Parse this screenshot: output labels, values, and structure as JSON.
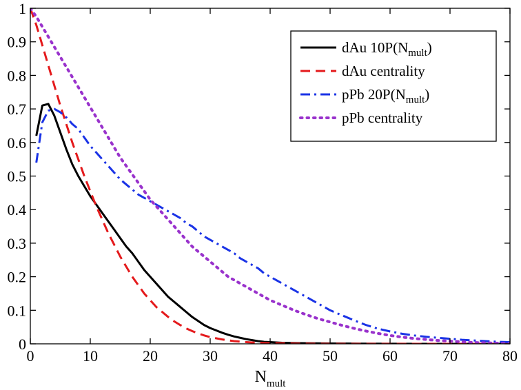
{
  "chart_data": {
    "type": "line",
    "xlabel": {
      "main": "N",
      "sub": "mult"
    },
    "ylabel": "",
    "xlim": [
      0,
      80
    ],
    "ylim": [
      0,
      1
    ],
    "xticks": [
      "0",
      "10",
      "20",
      "30",
      "40",
      "50",
      "60",
      "70",
      "80"
    ],
    "yticks": [
      "0",
      "0.1",
      "0.2",
      "0.3",
      "0.4",
      "0.5",
      "0.6",
      "0.7",
      "0.8",
      "0.9",
      "1"
    ],
    "legend_position": "top-right",
    "grid": false,
    "series": [
      {
        "name": "dAu 10P(Nmult)",
        "legend": {
          "pre": "dAu 10P(N",
          "sub": "mult",
          "post": ")"
        },
        "color": "#000000",
        "style": "solid",
        "points": [
          [
            1,
            0.62
          ],
          [
            2,
            0.71
          ],
          [
            3,
            0.715
          ],
          [
            4,
            0.68
          ],
          [
            5,
            0.63
          ],
          [
            6,
            0.58
          ],
          [
            7,
            0.535
          ],
          [
            8,
            0.5
          ],
          [
            9,
            0.47
          ],
          [
            10,
            0.44
          ],
          [
            11,
            0.415
          ],
          [
            12,
            0.39
          ],
          [
            13,
            0.365
          ],
          [
            14,
            0.34
          ],
          [
            15,
            0.315
          ],
          [
            16,
            0.29
          ],
          [
            17,
            0.27
          ],
          [
            18,
            0.245
          ],
          [
            19,
            0.22
          ],
          [
            20,
            0.2
          ],
          [
            21,
            0.18
          ],
          [
            22,
            0.16
          ],
          [
            23,
            0.14
          ],
          [
            24,
            0.125
          ],
          [
            25,
            0.11
          ],
          [
            26,
            0.095
          ],
          [
            27,
            0.08
          ],
          [
            28,
            0.068
          ],
          [
            29,
            0.056
          ],
          [
            30,
            0.047
          ],
          [
            31,
            0.04
          ],
          [
            32,
            0.033
          ],
          [
            33,
            0.027
          ],
          [
            34,
            0.022
          ],
          [
            35,
            0.018
          ],
          [
            36,
            0.014
          ],
          [
            37,
            0.011
          ],
          [
            38,
            0.008
          ],
          [
            39,
            0.006
          ],
          [
            40,
            0.005
          ],
          [
            42,
            0.003
          ],
          [
            45,
            0.002
          ],
          [
            50,
            0.001
          ],
          [
            55,
            0.0005
          ],
          [
            60,
            0.0002
          ],
          [
            65,
            0.0001
          ],
          [
            70,
            0.0
          ],
          [
            75,
            0.0
          ],
          [
            80,
            0.0
          ]
        ]
      },
      {
        "name": "dAu centrality",
        "legend": {
          "pre": "dAu centrality",
          "sub": "",
          "post": ""
        },
        "color": "#e41a1c",
        "style": "dashed",
        "points": [
          [
            0,
            1.0
          ],
          [
            1,
            0.95
          ],
          [
            2,
            0.89
          ],
          [
            3,
            0.83
          ],
          [
            4,
            0.77
          ],
          [
            5,
            0.71
          ],
          [
            6,
            0.655
          ],
          [
            7,
            0.6
          ],
          [
            8,
            0.55
          ],
          [
            9,
            0.5
          ],
          [
            10,
            0.455
          ],
          [
            11,
            0.41
          ],
          [
            12,
            0.37
          ],
          [
            13,
            0.33
          ],
          [
            14,
            0.295
          ],
          [
            15,
            0.26
          ],
          [
            16,
            0.23
          ],
          [
            17,
            0.2
          ],
          [
            18,
            0.175
          ],
          [
            19,
            0.15
          ],
          [
            20,
            0.13
          ],
          [
            21,
            0.11
          ],
          [
            22,
            0.095
          ],
          [
            23,
            0.08
          ],
          [
            24,
            0.067
          ],
          [
            25,
            0.056
          ],
          [
            26,
            0.046
          ],
          [
            27,
            0.038
          ],
          [
            28,
            0.031
          ],
          [
            29,
            0.025
          ],
          [
            30,
            0.02
          ],
          [
            32,
            0.013
          ],
          [
            34,
            0.008
          ],
          [
            36,
            0.005
          ],
          [
            38,
            0.003
          ],
          [
            40,
            0.002
          ],
          [
            45,
            0.0005
          ],
          [
            50,
            0.0001
          ],
          [
            60,
            0.0
          ],
          [
            70,
            0.0
          ],
          [
            80,
            0.0
          ]
        ]
      },
      {
        "name": "pPb 20P(Nmult)",
        "legend": {
          "pre": "pPb 20P(N",
          "sub": "mult",
          "post": ")"
        },
        "color": "#1a33e6",
        "style": "dashdot",
        "points": [
          [
            1,
            0.54
          ],
          [
            2,
            0.66
          ],
          [
            3,
            0.695
          ],
          [
            4,
            0.7
          ],
          [
            5,
            0.69
          ],
          [
            6,
            0.675
          ],
          [
            7,
            0.655
          ],
          [
            8,
            0.64
          ],
          [
            9,
            0.615
          ],
          [
            10,
            0.59
          ],
          [
            11,
            0.57
          ],
          [
            12,
            0.55
          ],
          [
            13,
            0.53
          ],
          [
            14,
            0.51
          ],
          [
            15,
            0.49
          ],
          [
            16,
            0.475
          ],
          [
            17,
            0.46
          ],
          [
            18,
            0.445
          ],
          [
            19,
            0.435
          ],
          [
            20,
            0.425
          ],
          [
            21,
            0.415
          ],
          [
            22,
            0.405
          ],
          [
            23,
            0.395
          ],
          [
            24,
            0.385
          ],
          [
            25,
            0.375
          ],
          [
            26,
            0.36
          ],
          [
            27,
            0.35
          ],
          [
            28,
            0.335
          ],
          [
            29,
            0.32
          ],
          [
            30,
            0.31
          ],
          [
            31,
            0.3
          ],
          [
            32,
            0.29
          ],
          [
            33,
            0.28
          ],
          [
            34,
            0.27
          ],
          [
            35,
            0.255
          ],
          [
            36,
            0.245
          ],
          [
            37,
            0.235
          ],
          [
            38,
            0.225
          ],
          [
            39,
            0.21
          ],
          [
            40,
            0.2
          ],
          [
            41,
            0.19
          ],
          [
            42,
            0.18
          ],
          [
            43,
            0.17
          ],
          [
            44,
            0.16
          ],
          [
            45,
            0.15
          ],
          [
            46,
            0.14
          ],
          [
            47,
            0.13
          ],
          [
            48,
            0.12
          ],
          [
            49,
            0.11
          ],
          [
            50,
            0.1
          ],
          [
            52,
            0.085
          ],
          [
            54,
            0.07
          ],
          [
            56,
            0.056
          ],
          [
            58,
            0.045
          ],
          [
            60,
            0.037
          ],
          [
            62,
            0.03
          ],
          [
            64,
            0.025
          ],
          [
            66,
            0.021
          ],
          [
            68,
            0.018
          ],
          [
            70,
            0.015
          ],
          [
            72,
            0.012
          ],
          [
            74,
            0.01
          ],
          [
            76,
            0.008
          ],
          [
            78,
            0.006
          ],
          [
            80,
            0.005
          ]
        ]
      },
      {
        "name": "pPb centrality",
        "legend": {
          "pre": "pPb centrality",
          "sub": "",
          "post": ""
        },
        "color": "#9932cc",
        "style": "dotted",
        "points": [
          [
            0,
            1.0
          ],
          [
            1,
            0.975
          ],
          [
            2,
            0.945
          ],
          [
            3,
            0.915
          ],
          [
            4,
            0.885
          ],
          [
            5,
            0.855
          ],
          [
            6,
            0.825
          ],
          [
            7,
            0.795
          ],
          [
            8,
            0.765
          ],
          [
            9,
            0.735
          ],
          [
            10,
            0.705
          ],
          [
            11,
            0.675
          ],
          [
            12,
            0.645
          ],
          [
            13,
            0.615
          ],
          [
            14,
            0.585
          ],
          [
            15,
            0.555
          ],
          [
            16,
            0.53
          ],
          [
            17,
            0.505
          ],
          [
            18,
            0.48
          ],
          [
            19,
            0.455
          ],
          [
            20,
            0.43
          ],
          [
            21,
            0.41
          ],
          [
            22,
            0.39
          ],
          [
            23,
            0.37
          ],
          [
            24,
            0.35
          ],
          [
            25,
            0.33
          ],
          [
            26,
            0.31
          ],
          [
            27,
            0.29
          ],
          [
            28,
            0.275
          ],
          [
            29,
            0.26
          ],
          [
            30,
            0.245
          ],
          [
            31,
            0.23
          ],
          [
            32,
            0.215
          ],
          [
            33,
            0.2
          ],
          [
            34,
            0.19
          ],
          [
            35,
            0.18
          ],
          [
            36,
            0.17
          ],
          [
            37,
            0.16
          ],
          [
            38,
            0.15
          ],
          [
            39,
            0.14
          ],
          [
            40,
            0.13
          ],
          [
            42,
            0.115
          ],
          [
            44,
            0.1
          ],
          [
            46,
            0.087
          ],
          [
            48,
            0.075
          ],
          [
            50,
            0.065
          ],
          [
            52,
            0.055
          ],
          [
            54,
            0.046
          ],
          [
            56,
            0.038
          ],
          [
            58,
            0.031
          ],
          [
            60,
            0.025
          ],
          [
            62,
            0.02
          ],
          [
            64,
            0.016
          ],
          [
            66,
            0.013
          ],
          [
            68,
            0.01
          ],
          [
            70,
            0.008
          ],
          [
            72,
            0.006
          ],
          [
            74,
            0.004
          ],
          [
            76,
            0.003
          ],
          [
            78,
            0.002
          ],
          [
            80,
            0.001
          ]
        ]
      }
    ]
  }
}
